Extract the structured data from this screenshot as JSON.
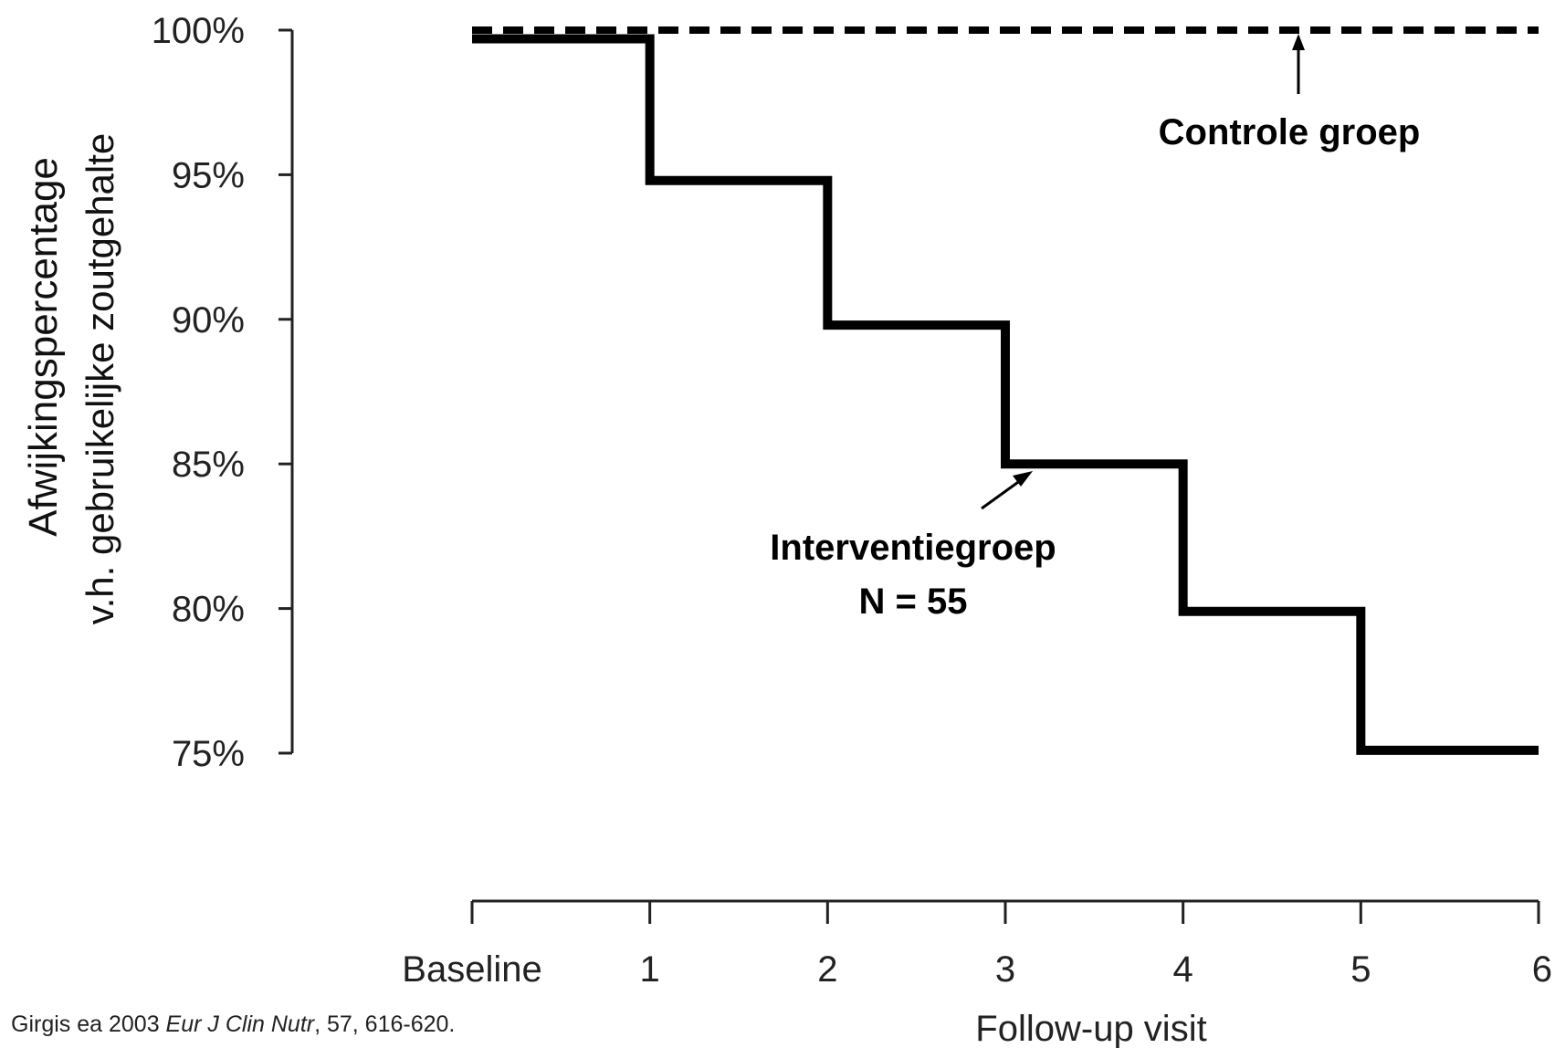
{
  "chart_data": {
    "type": "line",
    "x_categories": [
      "Baseline",
      "1",
      "2",
      "3",
      "4",
      "5",
      "6"
    ],
    "y_ticks": [
      "100%",
      "95%",
      "90%",
      "85%",
      "80%",
      "75%"
    ],
    "ylim": [
      75,
      100
    ],
    "ylabel_line1": "Afwijkingspercentage",
    "ylabel_line2": "v.h. gebruikelijke zoutgehalte",
    "xlabel": "Follow-up visit",
    "step": true,
    "grid": false,
    "series": [
      {
        "name": "Controle groep",
        "style": "dashed",
        "values": [
          100,
          100,
          100,
          100,
          100,
          100,
          100
        ]
      },
      {
        "name": "Interventiegroep",
        "style": "solid",
        "values": [
          99.7,
          94.8,
          89.8,
          85,
          79.9,
          75.1,
          75.1
        ]
      }
    ],
    "annotations": {
      "control_label": "Controle groep",
      "intervention_label": "Interventiegroep",
      "intervention_n": "N = 55"
    }
  },
  "citation": {
    "prefix": "Girgis ea 2003  ",
    "journal": "Eur J Clin Nutr",
    "suffix": ", 57, 616-620."
  },
  "colors": {
    "line": "#000000",
    "axis": "#222222"
  }
}
